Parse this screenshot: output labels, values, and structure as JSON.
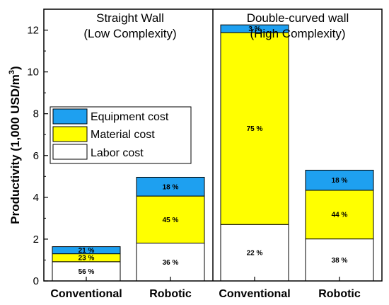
{
  "chart_data": {
    "type": "bar",
    "stacked": true,
    "ylabel": "Productivity (1,000 USD/m³)",
    "ylabel_main": "Productivity (1,000 USD/m",
    "ylabel_sup": "3",
    "ylabel_close": ")",
    "ylim": [
      0,
      13
    ],
    "yticks": [
      "0",
      "2",
      "4",
      "6",
      "8",
      "10",
      "12"
    ],
    "grid": false,
    "legend_placement": "left-middle",
    "panels": [
      {
        "title_line1": "Straight Wall",
        "title_line2": "(Low Complexity)"
      },
      {
        "title_line1": "Double-curved wall",
        "title_line2": "(High Complexity)"
      }
    ],
    "categories": [
      "Conventional",
      "Robotic",
      "Conventional",
      "Robotic"
    ],
    "series": [
      {
        "name": "Labor cost",
        "color": "#ffffff",
        "values": [
          0.92,
          1.81,
          2.7,
          2.01
        ],
        "labels": [
          "56 %",
          "36 %",
          "22 %",
          "38 %"
        ]
      },
      {
        "name": "Material cost",
        "color": "#ffff00",
        "values": [
          0.38,
          2.25,
          9.18,
          2.33
        ],
        "labels": [
          "23 %",
          "45 %",
          "75 %",
          "44 %"
        ]
      },
      {
        "name": "Equipment cost",
        "color": "#1ea0f0",
        "values": [
          0.34,
          0.9,
          0.37,
          0.96
        ],
        "labels": [
          "21 %",
          "18 %",
          "3 %",
          "18 %"
        ]
      }
    ],
    "legend_order": [
      "Equipment cost",
      "Material cost",
      "Labor cost"
    ]
  }
}
